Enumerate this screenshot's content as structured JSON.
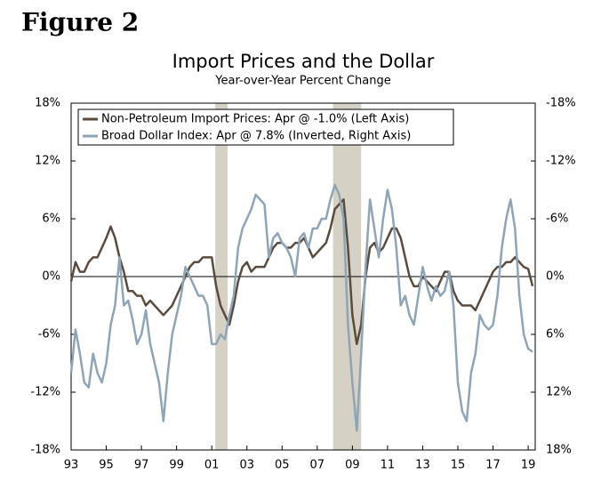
{
  "figure_label": "Figure 2",
  "chart_data": {
    "type": "line",
    "title": "Import Prices and the Dollar",
    "subtitle": "Year-over-Year Percent Change",
    "x": [
      1993,
      1993.25,
      1993.5,
      1993.75,
      1994,
      1994.25,
      1994.5,
      1994.75,
      1995,
      1995.25,
      1995.5,
      1995.75,
      1996,
      1996.25,
      1996.5,
      1996.75,
      1997,
      1997.25,
      1997.5,
      1997.75,
      1998,
      1998.25,
      1998.5,
      1998.75,
      1999,
      1999.25,
      1999.5,
      1999.75,
      2000,
      2000.25,
      2000.5,
      2000.75,
      2001,
      2001.25,
      2001.5,
      2001.75,
      2002,
      2002.25,
      2002.5,
      2002.75,
      2003,
      2003.25,
      2003.5,
      2003.75,
      2004,
      2004.25,
      2004.5,
      2004.75,
      2005,
      2005.25,
      2005.5,
      2005.75,
      2006,
      2006.25,
      2006.5,
      2006.75,
      2007,
      2007.25,
      2007.5,
      2007.75,
      2008,
      2008.25,
      2008.5,
      2008.75,
      2009,
      2009.25,
      2009.5,
      2009.75,
      2010,
      2010.25,
      2010.5,
      2010.75,
      2011,
      2011.25,
      2011.5,
      2011.75,
      2012,
      2012.25,
      2012.5,
      2012.75,
      2013,
      2013.25,
      2013.5,
      2013.75,
      2014,
      2014.25,
      2014.5,
      2014.75,
      2015,
      2015.25,
      2015.5,
      2015.75,
      2016,
      2016.25,
      2016.5,
      2016.75,
      2017,
      2017.25,
      2017.5,
      2017.75,
      2018,
      2018.25,
      2018.5,
      2018.75,
      2019,
      2019.25
    ],
    "series": [
      {
        "name": "Non-Petroleum Import Prices: Apr @ -1.0% (Left Axis)",
        "color": "#5b4b3e",
        "axis": "y",
        "values": [
          -0.5,
          1.5,
          0.5,
          0.5,
          1.5,
          2,
          2,
          3,
          4,
          5.2,
          4,
          2,
          0.5,
          -1.5,
          -1.5,
          -2,
          -2,
          -3,
          -2.5,
          -3,
          -3.5,
          -4,
          -3.5,
          -3,
          -2,
          -1,
          0,
          1,
          1.5,
          1.5,
          2,
          2,
          2,
          -1,
          -3,
          -4,
          -5,
          -3,
          -0.5,
          1,
          1.5,
          0.5,
          1,
          1,
          1,
          2,
          3,
          3.5,
          3.5,
          3,
          3,
          3.5,
          3.5,
          4,
          3,
          2,
          2.5,
          3,
          3.5,
          5,
          7,
          7.5,
          8,
          3,
          -4,
          -7,
          -5,
          0,
          3,
          3.5,
          2.5,
          3,
          4,
          5,
          5,
          4,
          2,
          0,
          -1,
          -1,
          0,
          -0.5,
          -1,
          -1.5,
          -0.5,
          0.5,
          0.5,
          -1.5,
          -2.5,
          -3,
          -3,
          -3,
          -3.5,
          -2.5,
          -1.5,
          -0.5,
          0.5,
          1,
          1,
          1.5,
          1.5,
          2,
          1.5,
          1,
          0.8,
          -1.0
        ]
      },
      {
        "name": "Broad Dollar Index: Apr @ 7.8% (Inverted, Right Axis)",
        "color": "#8ea5b7",
        "axis": "y2",
        "values": [
          10,
          5.5,
          8,
          11,
          11.5,
          8,
          10,
          11,
          9,
          5,
          3,
          -2,
          3,
          2.5,
          4.5,
          7,
          6,
          3.5,
          7,
          9,
          11,
          15,
          10,
          6,
          4,
          2,
          -1,
          0,
          1,
          2,
          2,
          3,
          7,
          7,
          6,
          6.5,
          4,
          2,
          -3,
          -5,
          -6,
          -7,
          -8.5,
          -8,
          -7.5,
          -2,
          -4,
          -4.5,
          -3.5,
          -3,
          -2,
          0,
          -4,
          -4.5,
          -3,
          -5,
          -5,
          -6,
          -6,
          -8,
          -9.5,
          -8.5,
          -6,
          5,
          11,
          16,
          8,
          -1,
          -8,
          -5,
          -2,
          -6,
          -9,
          -7,
          -3,
          3,
          2,
          4,
          5,
          2,
          -1,
          1,
          2.5,
          1,
          2,
          1.5,
          -0.5,
          3,
          11,
          14,
          15,
          10,
          8,
          4,
          5,
          5.5,
          5,
          2,
          -3,
          -6,
          -8,
          -5,
          2,
          6,
          7.5,
          7.8
        ]
      }
    ],
    "recessions": [
      [
        2001.2,
        2001.9
      ],
      [
        2007.9,
        2009.5
      ]
    ],
    "xlim": [
      1993,
      2019.4
    ],
    "xticks": [
      {
        "value": 1993,
        "label": "93"
      },
      {
        "value": 1995,
        "label": "95"
      },
      {
        "value": 1997,
        "label": "97"
      },
      {
        "value": 1999,
        "label": "99"
      },
      {
        "value": 2001,
        "label": "01"
      },
      {
        "value": 2003,
        "label": "03"
      },
      {
        "value": 2005,
        "label": "05"
      },
      {
        "value": 2007,
        "label": "07"
      },
      {
        "value": 2009,
        "label": "09"
      },
      {
        "value": 2011,
        "label": "11"
      },
      {
        "value": 2013,
        "label": "13"
      },
      {
        "value": 2015,
        "label": "15"
      },
      {
        "value": 2017,
        "label": "17"
      },
      {
        "value": 2019,
        "label": "19"
      }
    ],
    "ylim": [
      -18,
      18
    ],
    "yticks": [
      {
        "value": -18,
        "label": "-18%"
      },
      {
        "value": -12,
        "label": "-12%"
      },
      {
        "value": -6,
        "label": "-6%"
      },
      {
        "value": 0,
        "label": "0%"
      },
      {
        "value": 6,
        "label": "6%"
      },
      {
        "value": 12,
        "label": "12%"
      },
      {
        "value": 18,
        "label": "18%"
      }
    ],
    "y2lim": [
      18,
      -18
    ],
    "y2ticks": [
      {
        "value": 18,
        "label": "18%"
      },
      {
        "value": 12,
        "label": "12%"
      },
      {
        "value": 6,
        "label": "6%"
      },
      {
        "value": 0,
        "label": "0%"
      },
      {
        "value": -6,
        "label": "-6%"
      },
      {
        "value": -12,
        "label": "-12%"
      },
      {
        "value": -18,
        "label": "-18%"
      }
    ],
    "legend": "upper left"
  }
}
